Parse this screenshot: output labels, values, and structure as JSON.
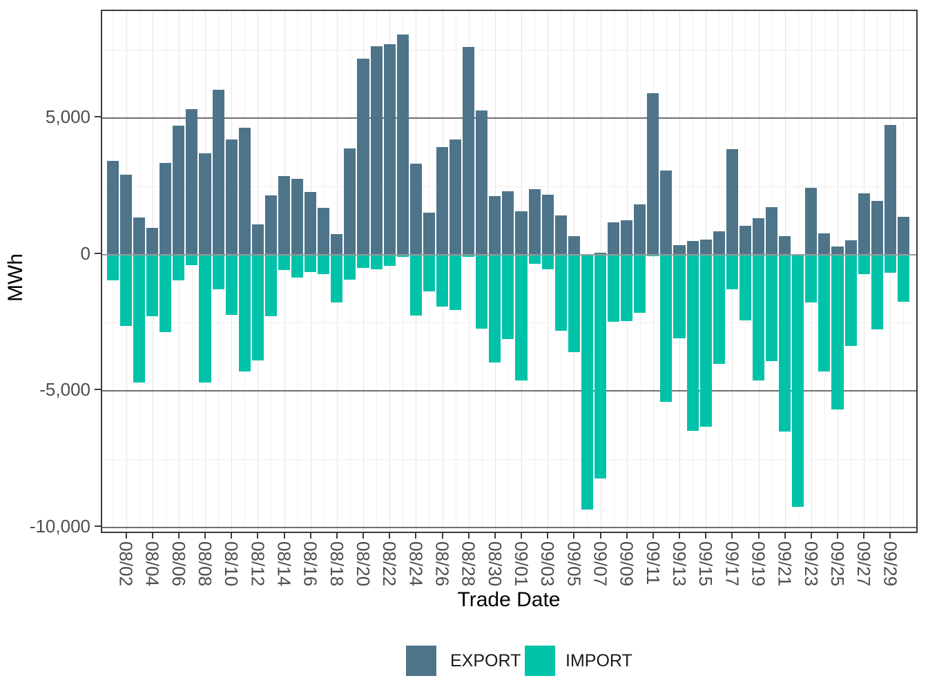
{
  "chart_data": {
    "type": "bar",
    "title": "",
    "xlabel": "Trade Date",
    "ylabel": "MWh",
    "ylim": [
      -10250,
      8900
    ],
    "grid": "major and minor, light gray verticals per day, dark gray lines at 0/±5000/-10000",
    "legend_position": "bottom center",
    "x": [
      "08/01",
      "08/02",
      "08/03",
      "08/04",
      "08/05",
      "08/06",
      "08/07",
      "08/08",
      "08/09",
      "08/10",
      "08/11",
      "08/12",
      "08/13",
      "08/14",
      "08/15",
      "08/16",
      "08/17",
      "08/18",
      "08/19",
      "08/20",
      "08/21",
      "08/22",
      "08/23",
      "08/24",
      "08/25",
      "08/26",
      "08/27",
      "08/28",
      "08/29",
      "08/30",
      "08/31",
      "09/01",
      "09/02",
      "09/03",
      "09/04",
      "09/05",
      "09/06",
      "09/07",
      "09/08",
      "09/09",
      "09/10",
      "09/11",
      "09/12",
      "09/13",
      "09/14",
      "09/15",
      "09/16",
      "09/17",
      "09/18",
      "09/19",
      "09/20",
      "09/21",
      "09/22",
      "09/23",
      "09/24",
      "09/25",
      "09/26",
      "09/27",
      "09/28",
      "09/29",
      "09/30"
    ],
    "series": [
      {
        "name": "EXPORT",
        "color": "#4E7489",
        "values": [
          3430,
          2920,
          1360,
          975,
          3340,
          4715,
          5330,
          3705,
          6020,
          4210,
          4645,
          1100,
          2155,
          2860,
          2775,
          2290,
          1705,
          755,
          3880,
          7160,
          7625,
          7700,
          8045,
          3330,
          1520,
          3940,
          4215,
          7590,
          5270,
          2130,
          2305,
          1580,
          2395,
          2195,
          1430,
          670,
          15,
          60,
          1185,
          1245,
          1835,
          5905,
          3065,
          340,
          500,
          545,
          845,
          3855,
          1055,
          1320,
          1740,
          670,
          10,
          2445,
          780,
          300,
          510,
          2235,
          1965,
          4745,
          1375
        ]
      },
      {
        "name": "IMPORT",
        "color": "#00C2A8",
        "values": [
          -940,
          -2615,
          -4680,
          -2255,
          -2845,
          -940,
          -385,
          -4680,
          -1285,
          -2220,
          -4275,
          -3880,
          -2255,
          -575,
          -845,
          -650,
          -715,
          -1765,
          -915,
          -500,
          -535,
          -410,
          -85,
          -2240,
          -1350,
          -1900,
          -2030,
          -80,
          -2725,
          -3965,
          -3105,
          -4620,
          -350,
          -545,
          -2800,
          -3570,
          -9340,
          -8205,
          -2470,
          -2445,
          -2130,
          -70,
          -5395,
          -3065,
          -6465,
          -6310,
          -4005,
          -1270,
          -2415,
          -4605,
          -3900,
          -6490,
          -9245,
          -1755,
          -4285,
          -5670,
          -3355,
          -720,
          -2740,
          -660,
          -1730
        ]
      }
    ],
    "yticks": [
      {
        "value": 5000,
        "label": "5,000"
      },
      {
        "value": 0,
        "label": "0"
      },
      {
        "value": -5000,
        "label": "-5,000"
      },
      {
        "value": -10000,
        "label": "-10,000"
      }
    ],
    "xticks": [
      "08/02",
      "08/04",
      "08/06",
      "08/08",
      "08/10",
      "08/12",
      "08/14",
      "08/16",
      "08/18",
      "08/20",
      "08/22",
      "08/24",
      "08/26",
      "08/28",
      "08/30",
      "09/01",
      "09/03",
      "09/05",
      "09/07",
      "09/09",
      "09/11",
      "09/13",
      "09/15",
      "09/17",
      "09/19",
      "09/21",
      "09/23",
      "09/25",
      "09/27",
      "09/29"
    ]
  }
}
